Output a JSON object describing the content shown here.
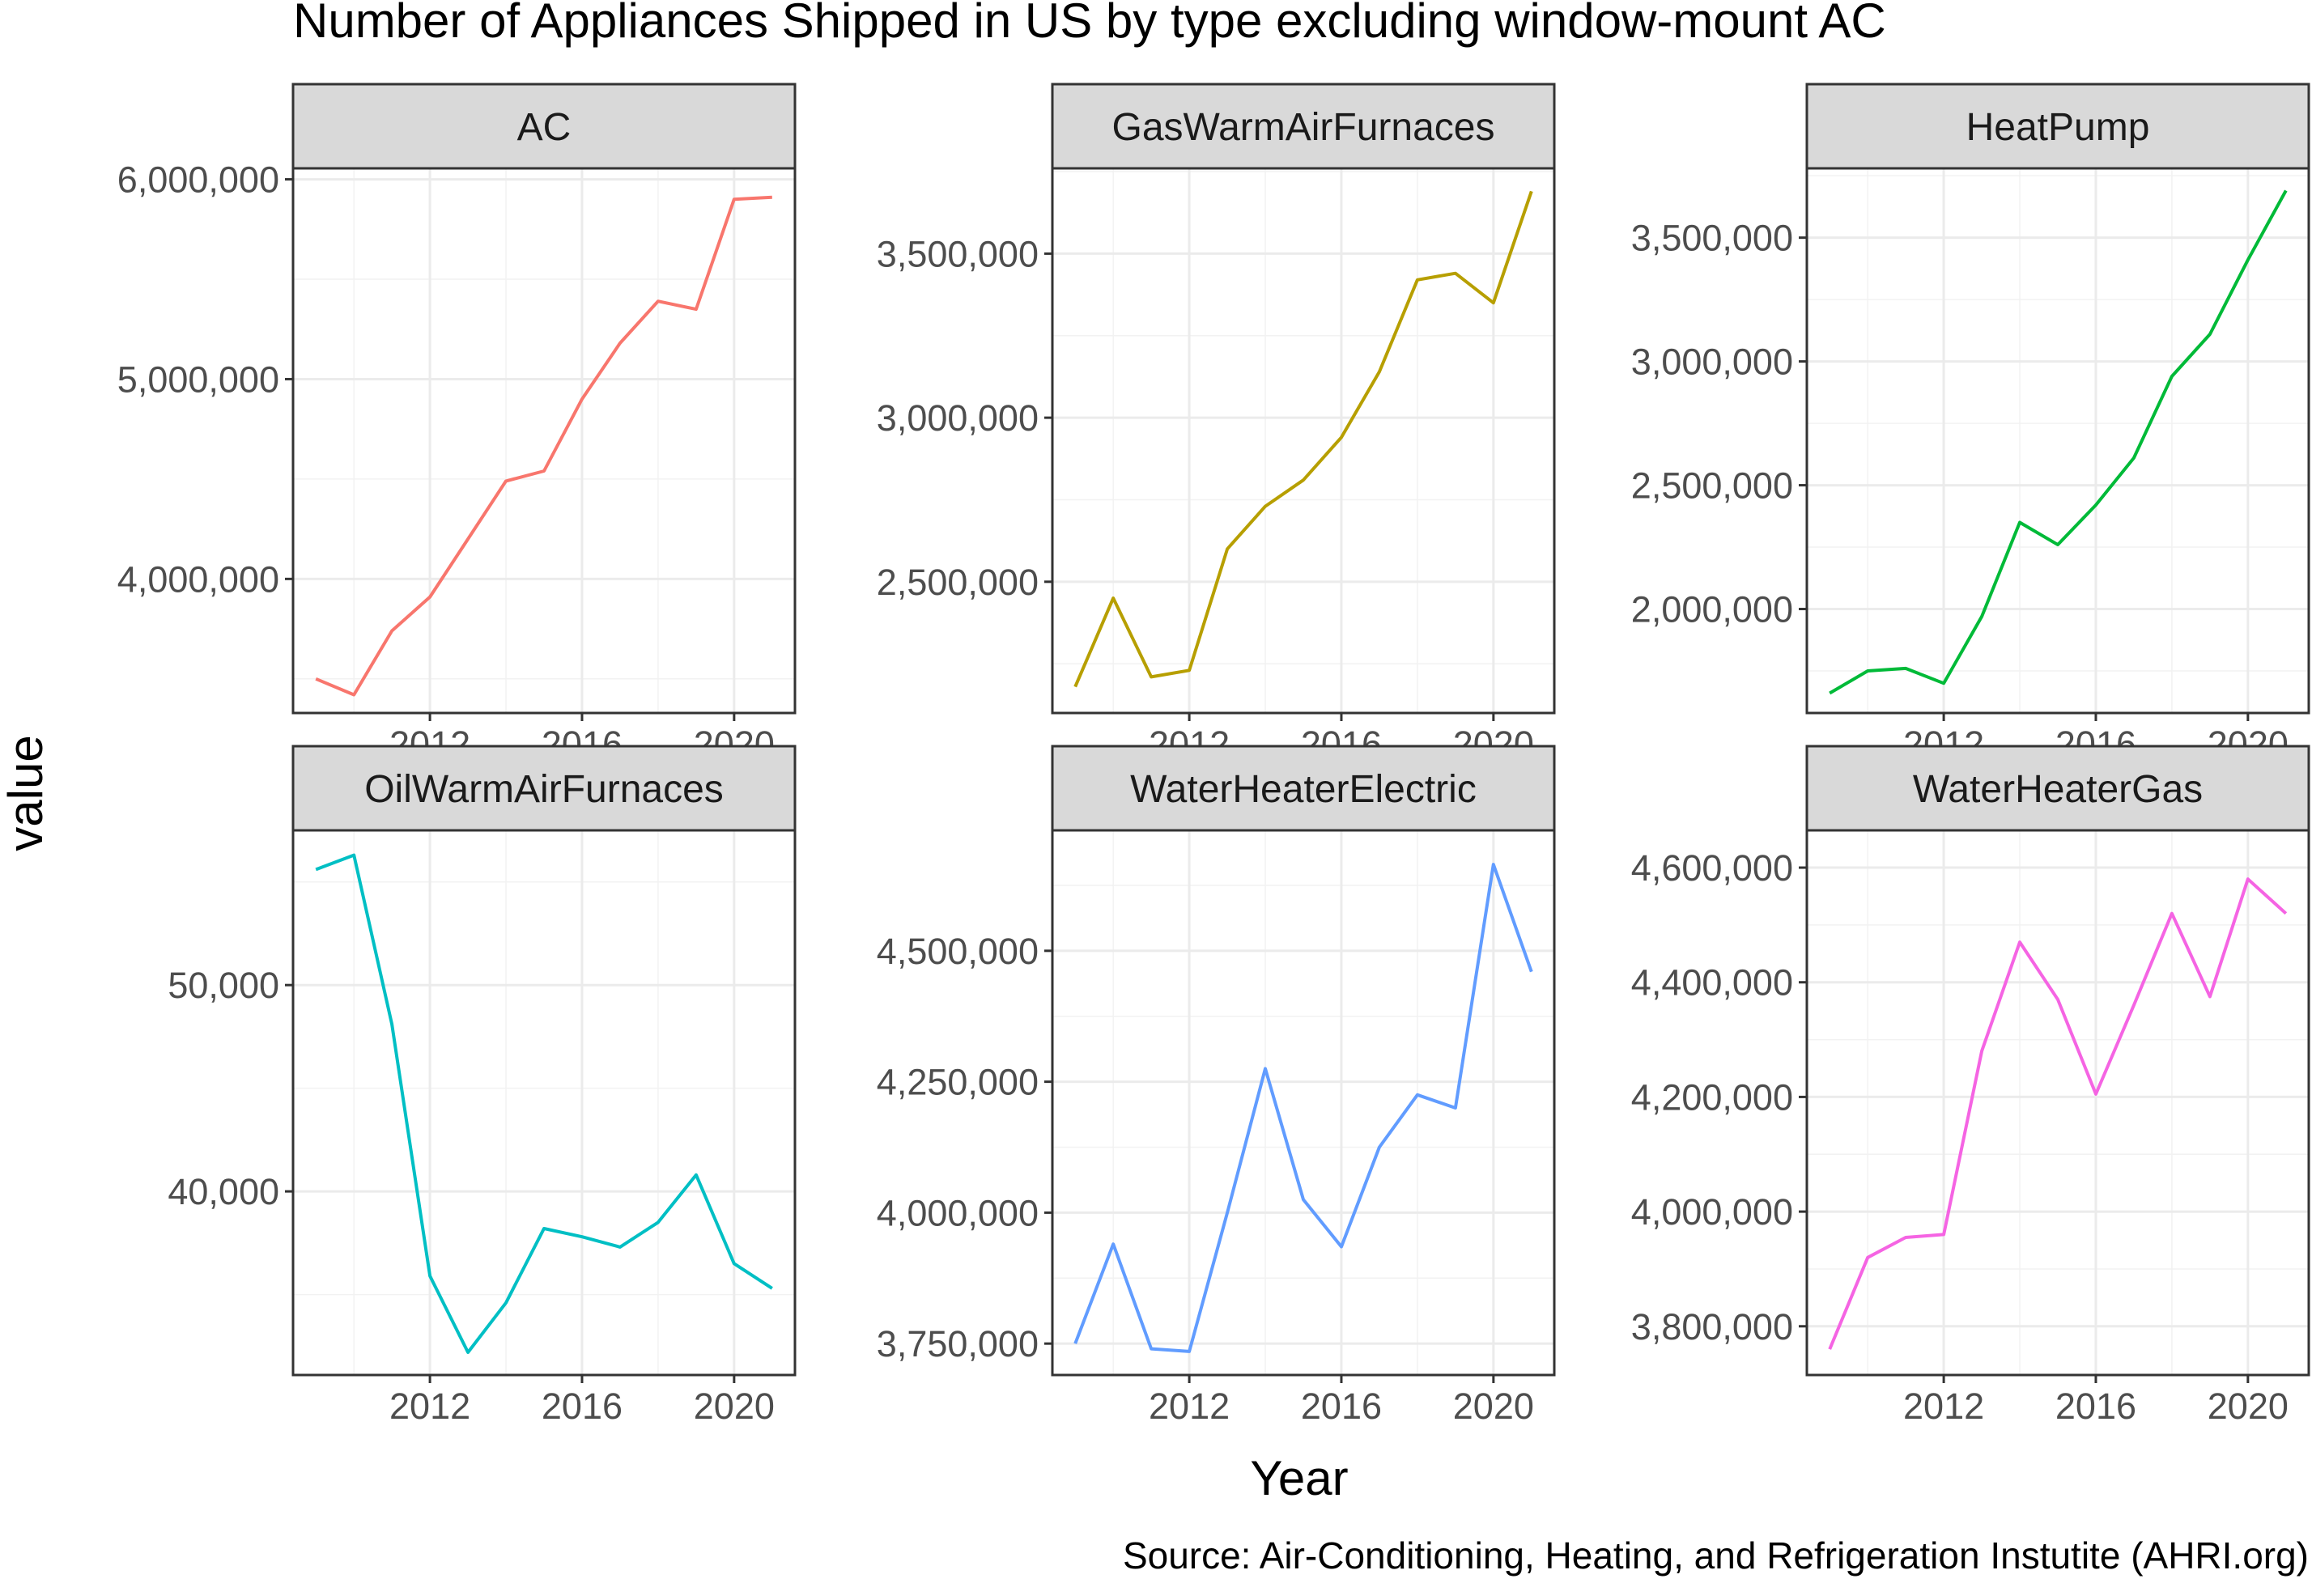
{
  "chart_data": {
    "type": "line",
    "title": "Number of Appliances Shipped in US by type excluding window-mount AC",
    "xlabel": "Year",
    "ylabel": "value",
    "caption": "Source: Air-Conditioning, Heating, and Refrigeration Instutite (AHRI.org)",
    "x": [
      2009,
      2010,
      2011,
      2012,
      2013,
      2014,
      2015,
      2016,
      2017,
      2018,
      2019,
      2020,
      2021
    ],
    "xlim": [
      2008.4,
      2021.6
    ],
    "x_ticks": [
      2012,
      2016,
      2020
    ],
    "x_tick_labels": [
      "2012",
      "2016",
      "2020"
    ],
    "grid": true,
    "facets": 6,
    "layout": "2 rows x 3 columns, free y scales",
    "panels": [
      {
        "name": "AC",
        "color": "#F8766D",
        "ylim": [
          3329000,
          6055000
        ],
        "y_ticks": [
          4000000,
          5000000,
          6000000
        ],
        "y_tick_labels": [
          "4,000,000",
          "5,000,000",
          "6,000,000"
        ],
        "values": [
          3500000,
          3420000,
          3740000,
          3910000,
          4200000,
          4490000,
          4540000,
          4900000,
          5180000,
          5390000,
          5350000,
          5900000,
          5910000
        ]
      },
      {
        "name": "GasWarmAirFurnaces",
        "color": "#B79F00",
        "ylim": [
          2100000,
          3760000
        ],
        "y_ticks": [
          2500000,
          3000000,
          3500000
        ],
        "y_tick_labels": [
          "2,500,000",
          "3,000,000",
          "3,500,000"
        ],
        "values": [
          2180000,
          2450000,
          2210000,
          2230000,
          2600000,
          2730000,
          2810000,
          2940000,
          3140000,
          3420000,
          3440000,
          3350000,
          3690000
        ]
      },
      {
        "name": "HeatPump",
        "color": "#00BA38",
        "ylim": [
          1580000,
          3780000
        ],
        "y_ticks": [
          2000000,
          2500000,
          3000000,
          3500000
        ],
        "y_tick_labels": [
          "2,000,000",
          "2,500,000",
          "3,000,000",
          "3,500,000"
        ],
        "values": [
          1660000,
          1750000,
          1760000,
          1700000,
          1970000,
          2350000,
          2260000,
          2420000,
          2610000,
          2940000,
          3110000,
          3410000,
          3690000
        ]
      },
      {
        "name": "OilWarmAirFurnaces",
        "color": "#00BFC4",
        "ylim": [
          31100.0,
          57500.0
        ],
        "y_ticks": [
          40000,
          50000
        ],
        "y_tick_labels": [
          "40,000",
          "50,000"
        ],
        "values": [
          55600,
          56300,
          48100,
          35900,
          32200,
          34600,
          38200,
          37800,
          37300,
          38500,
          40800,
          36500,
          35300
        ]
      },
      {
        "name": "WaterHeaterElectric",
        "color": "#619CFF",
        "ylim": [
          3690000,
          4730000
        ],
        "y_ticks": [
          3750000,
          4000000,
          4250000,
          4500000
        ],
        "y_tick_labels": [
          "3,750,000",
          "4,000,000",
          "4,250,000",
          "4,500,000"
        ],
        "values": [
          3750000,
          3940000,
          3740000,
          3735000,
          4000000,
          4275000,
          4025000,
          3935000,
          4125000,
          4225000,
          4200000,
          4665000,
          4460000
        ]
      },
      {
        "name": "WaterHeaterGas",
        "color": "#F564E3",
        "ylim": [
          3715000,
          4665000
        ],
        "y_ticks": [
          3800000,
          4000000,
          4200000,
          4400000,
          4600000
        ],
        "y_tick_labels": [
          "3,800,000",
          "4,000,000",
          "4,200,000",
          "4,400,000",
          "4,600,000"
        ],
        "values": [
          3760000,
          3920000,
          3955000,
          3960000,
          4280000,
          4470000,
          4370000,
          4205000,
          4360000,
          4520000,
          4375000,
          4580000,
          4520000
        ]
      }
    ]
  }
}
